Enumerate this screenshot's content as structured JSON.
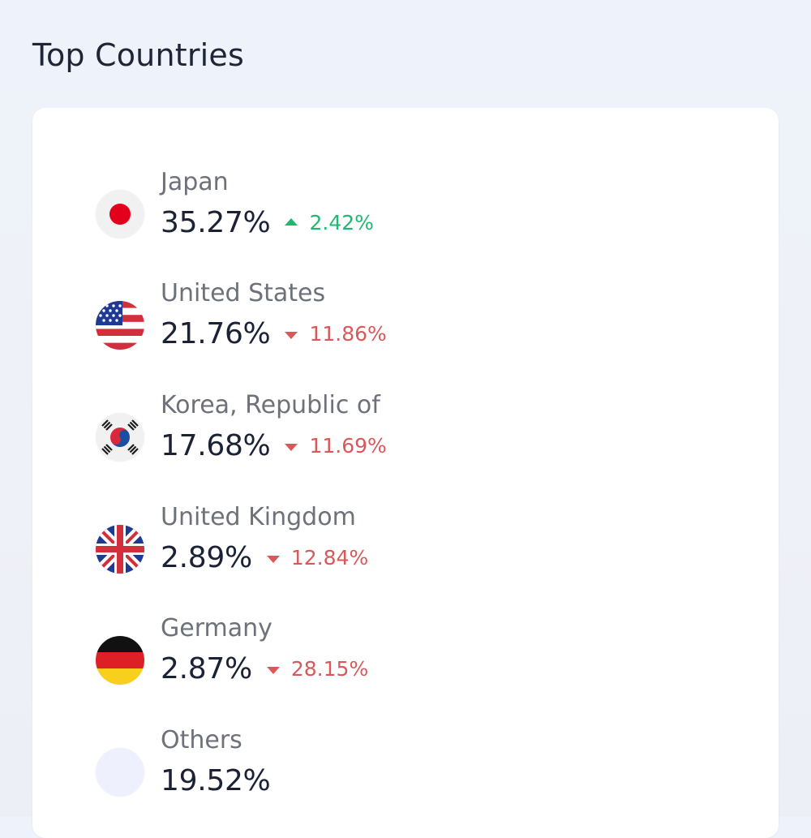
{
  "page": {
    "title": "Top Countries"
  },
  "countries": [
    {
      "name": "Japan",
      "share": "35.27%",
      "trend": "up",
      "change": "2.42%",
      "flag_icon": "japan-flag-icon"
    },
    {
      "name": "United States",
      "share": "21.76%",
      "trend": "down",
      "change": "11.86%",
      "flag_icon": "us-flag-icon"
    },
    {
      "name": "Korea, Republic of",
      "share": "17.68%",
      "trend": "down",
      "change": "11.69%",
      "flag_icon": "korea-flag-icon"
    },
    {
      "name": "United Kingdom",
      "share": "2.89%",
      "trend": "down",
      "change": "12.84%",
      "flag_icon": "uk-flag-icon"
    },
    {
      "name": "Germany",
      "share": "2.87%",
      "trend": "down",
      "change": "28.15%",
      "flag_icon": "germany-flag-icon"
    },
    {
      "name": "Others",
      "share": "19.52%",
      "flag_icon": "others-dot-icon"
    }
  ],
  "colors": {
    "up": "#1fb871",
    "down": "#d9595a",
    "text_primary": "#1b2236",
    "text_secondary": "#6d7179"
  }
}
